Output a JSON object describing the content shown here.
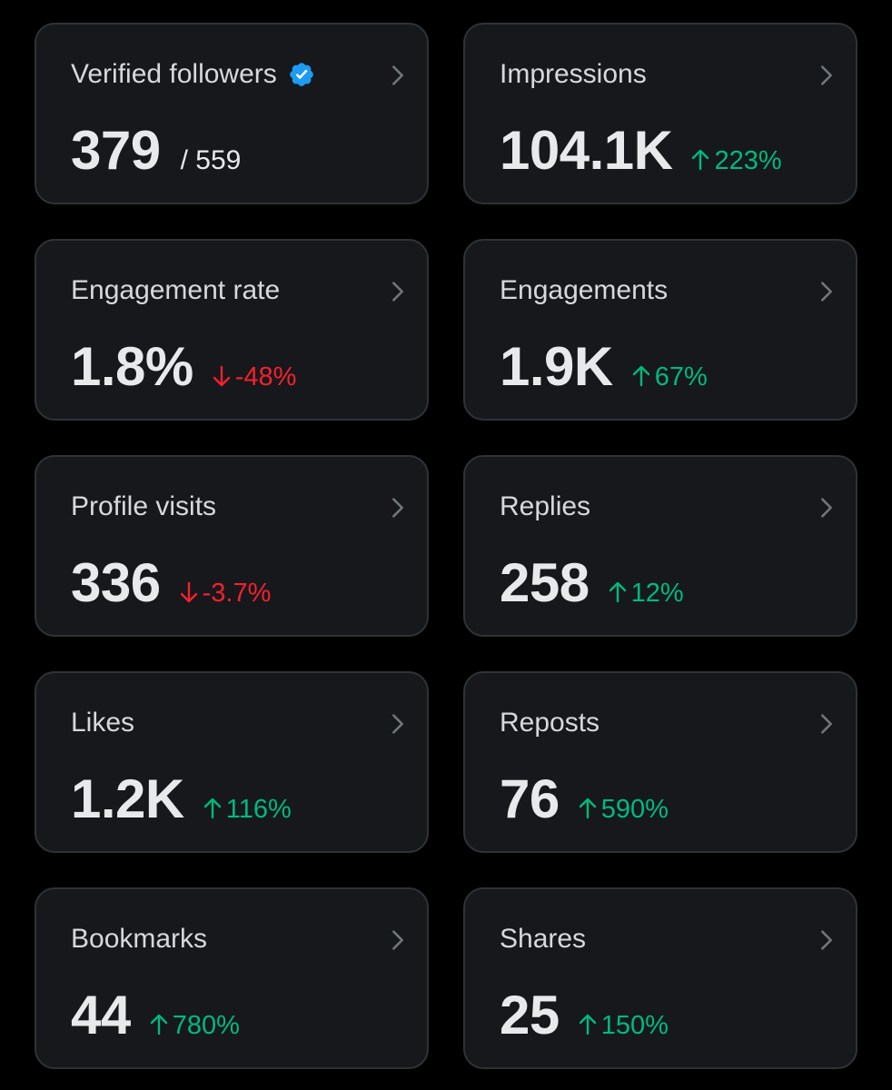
{
  "colors": {
    "background": "#000000",
    "card": "#16181c",
    "border": "#2f3336",
    "positive": "#00ba7c",
    "negative": "#f4212e",
    "verified": "#1d9bf0"
  },
  "cards": [
    {
      "label": "Verified followers",
      "value": "379",
      "sub": "/ 559",
      "icon": "verified-badge-icon"
    },
    {
      "label": "Impressions",
      "value": "104.1K",
      "change": "223%",
      "direction": "up"
    },
    {
      "label": "Engagement rate",
      "value": "1.8%",
      "change": "-48%",
      "direction": "down"
    },
    {
      "label": "Engagements",
      "value": "1.9K",
      "change": "67%",
      "direction": "up"
    },
    {
      "label": "Profile visits",
      "value": "336",
      "change": "-3.7%",
      "direction": "down"
    },
    {
      "label": "Replies",
      "value": "258",
      "change": "12%",
      "direction": "up"
    },
    {
      "label": "Likes",
      "value": "1.2K",
      "change": "116%",
      "direction": "up"
    },
    {
      "label": "Reposts",
      "value": "76",
      "change": "590%",
      "direction": "up"
    },
    {
      "label": "Bookmarks",
      "value": "44",
      "change": "780%",
      "direction": "up"
    },
    {
      "label": "Shares",
      "value": "25",
      "change": "150%",
      "direction": "up"
    }
  ]
}
